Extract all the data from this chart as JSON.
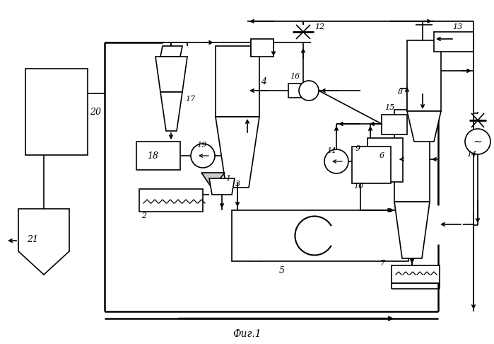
{
  "title": "Фиг.1",
  "bg_color": "#ffffff",
  "fig_width": 6.99,
  "fig_height": 4.86,
  "dpi": 100
}
